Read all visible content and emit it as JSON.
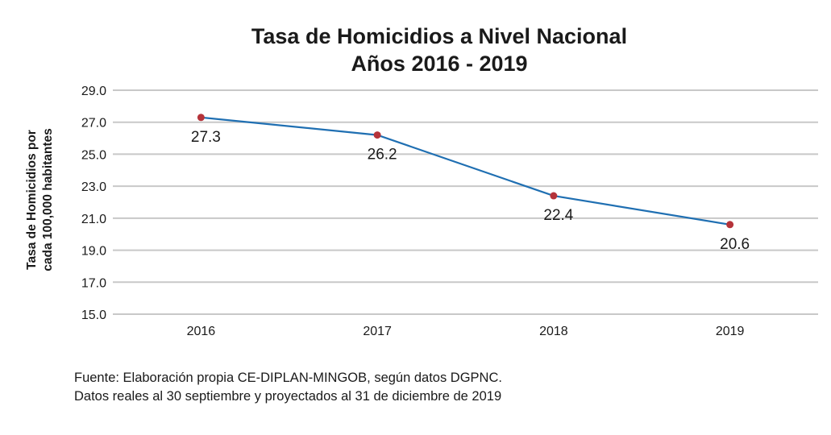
{
  "chart_data": {
    "type": "line",
    "title": "Tasa de Homicidios a Nivel Nacional",
    "subtitle": "Años 2016 - 2019",
    "ylabel_line1": "Tasa de Homicidios por",
    "ylabel_line2": "cada 100,000 habitantes",
    "categories": [
      "2016",
      "2017",
      "2018",
      "2019"
    ],
    "series": [
      {
        "values": [
          27.3,
          26.2,
          22.4,
          20.6
        ]
      }
    ],
    "value_labels": [
      "27.3",
      "26.2",
      "22.4",
      "20.6"
    ],
    "yticks": [
      "15.0",
      "17.0",
      "19.0",
      "21.0",
      "23.0",
      "25.0",
      "27.0",
      "29.0"
    ],
    "ylim": [
      15,
      29
    ],
    "grid": true,
    "line_color": "#1f6fb2",
    "marker_color": "#b5333a",
    "grid_color": "#c8c8c8"
  },
  "footnote": {
    "line1": "Fuente: Elaboración propia CE-DIPLAN-MINGOB, según datos DGPNC.",
    "line2": "Datos reales al 30 septiembre y proyectados al 31 de diciembre de 2019"
  }
}
